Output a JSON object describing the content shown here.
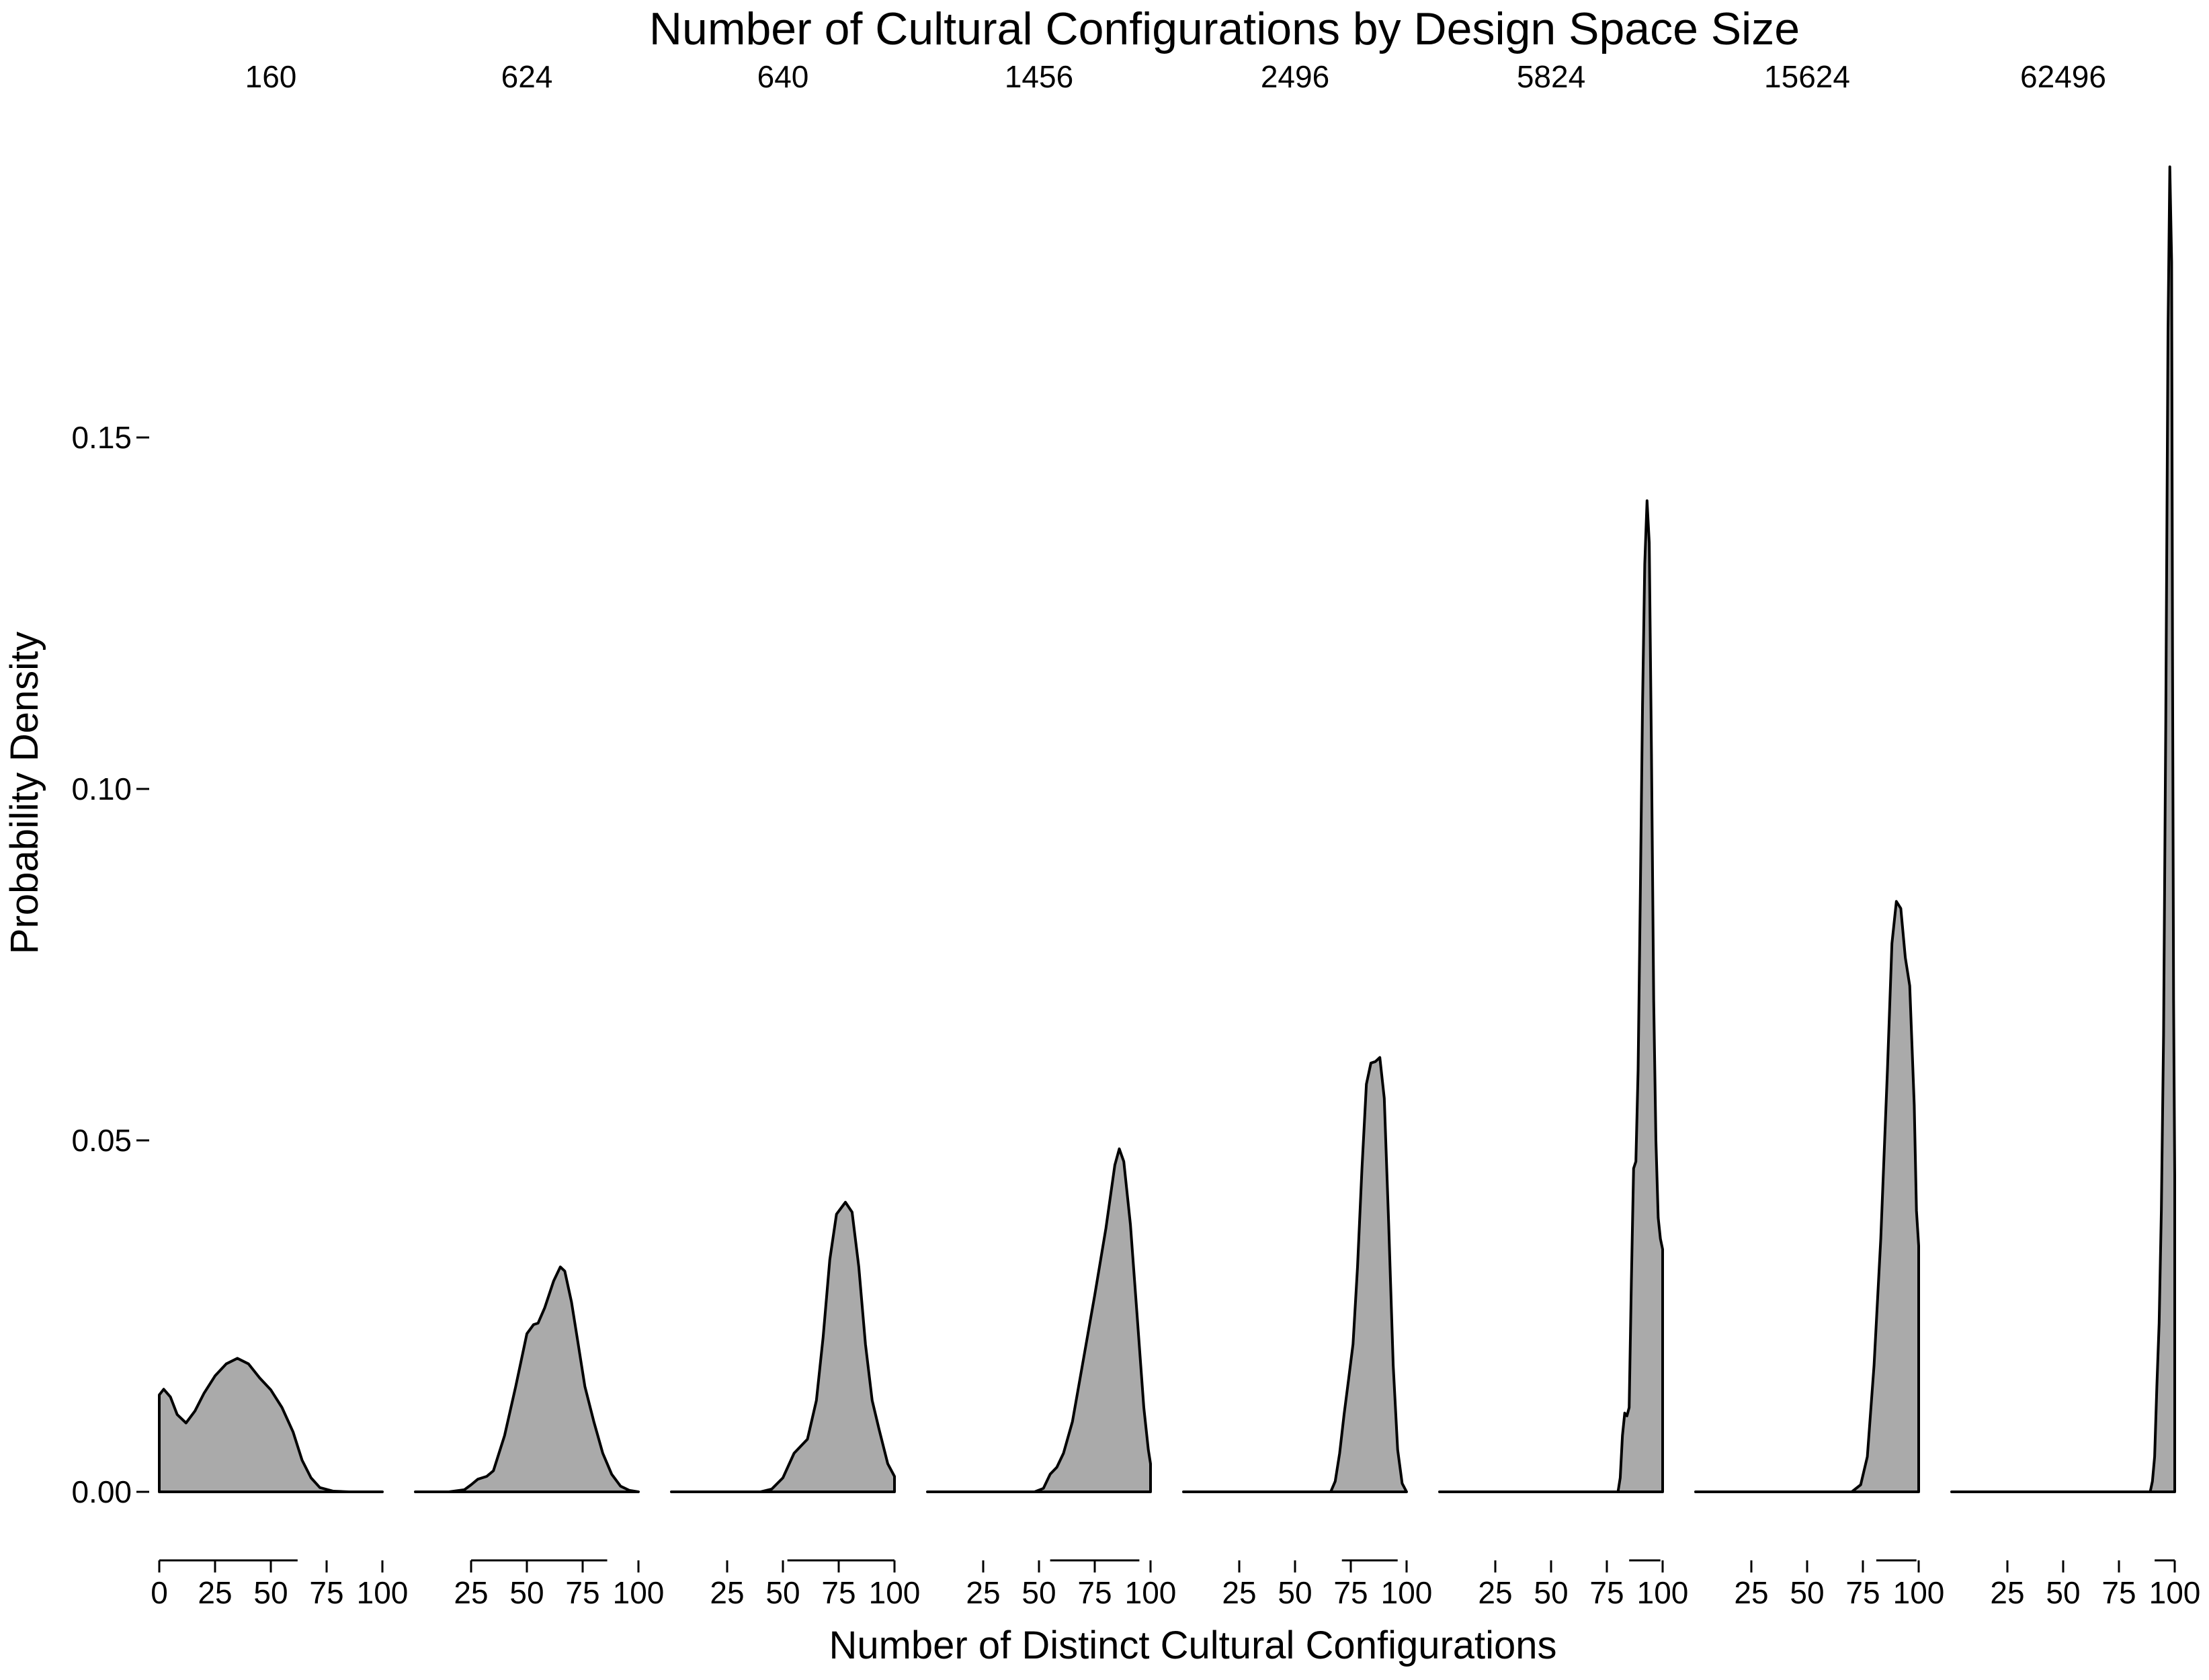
{
  "chart_data": {
    "type": "area",
    "title": "Number of Cultural Configurations by Design Space Size",
    "xlabel": "Number of Distinct Cultural Configurations",
    "ylabel": "Probability Density",
    "ylim": [
      0,
      0.19
    ],
    "y_ticks": [
      "0.00",
      "0.05",
      "0.10",
      "0.15"
    ],
    "x_ticks": [
      "25",
      "50",
      "75",
      "100"
    ],
    "x_tick_first_panel_extra": "0",
    "xlim": [
      0,
      100
    ],
    "grid": false,
    "fill_color": "#aaaaaa",
    "line_color": "#000000",
    "panels": [
      {
        "label": "160",
        "range": [
          0,
          62
        ],
        "points": [
          [
            0,
            0.0138
          ],
          [
            2,
            0.0146
          ],
          [
            5,
            0.0135
          ],
          [
            8,
            0.011
          ],
          [
            12,
            0.0098
          ],
          [
            16,
            0.0115
          ],
          [
            20,
            0.014
          ],
          [
            25,
            0.0165
          ],
          [
            30,
            0.0182
          ],
          [
            35,
            0.019
          ],
          [
            40,
            0.0182
          ],
          [
            45,
            0.0162
          ],
          [
            50,
            0.0145
          ],
          [
            55,
            0.012
          ],
          [
            60,
            0.0085
          ],
          [
            64,
            0.0045
          ],
          [
            68,
            0.002
          ],
          [
            72,
            0.0006
          ],
          [
            78,
            0.0001
          ],
          [
            85,
            0
          ],
          [
            100,
            0
          ]
        ]
      },
      {
        "label": "624",
        "range": [
          25,
          86
        ],
        "points": [
          [
            0,
            0
          ],
          [
            15,
            0
          ],
          [
            22,
            0.0003
          ],
          [
            25,
            0.001
          ],
          [
            28,
            0.0018
          ],
          [
            32,
            0.0022
          ],
          [
            35,
            0.003
          ],
          [
            40,
            0.008
          ],
          [
            45,
            0.015
          ],
          [
            50,
            0.0225
          ],
          [
            53,
            0.0238
          ],
          [
            55,
            0.024
          ],
          [
            58,
            0.0262
          ],
          [
            62,
            0.03
          ],
          [
            65,
            0.032
          ],
          [
            67,
            0.0314
          ],
          [
            70,
            0.027
          ],
          [
            73,
            0.021
          ],
          [
            76,
            0.015
          ],
          [
            80,
            0.01
          ],
          [
            84,
            0.0055
          ],
          [
            88,
            0.0025
          ],
          [
            92,
            0.0008
          ],
          [
            96,
            0.0002
          ],
          [
            100,
            0
          ]
        ]
      },
      {
        "label": "640",
        "range": [
          52,
          100
        ],
        "points": [
          [
            0,
            0
          ],
          [
            40,
            0
          ],
          [
            45,
            0.0004
          ],
          [
            50,
            0.002
          ],
          [
            55,
            0.0055
          ],
          [
            58,
            0.0065
          ],
          [
            61,
            0.0075
          ],
          [
            65,
            0.013
          ],
          [
            68,
            0.022
          ],
          [
            71,
            0.033
          ],
          [
            74,
            0.0395
          ],
          [
            78,
            0.0412
          ],
          [
            81,
            0.0398
          ],
          [
            84,
            0.032
          ],
          [
            87,
            0.021
          ],
          [
            90,
            0.013
          ],
          [
            93,
            0.009
          ],
          [
            97,
            0.004
          ],
          [
            100,
            0.0022
          ],
          [
            100,
            0
          ]
        ]
      },
      {
        "label": "1456",
        "range": [
          55,
          95
        ],
        "points": [
          [
            0,
            0
          ],
          [
            48,
            0
          ],
          [
            52,
            0.0005
          ],
          [
            55,
            0.0025
          ],
          [
            58,
            0.0035
          ],
          [
            61,
            0.0055
          ],
          [
            65,
            0.01
          ],
          [
            70,
            0.019
          ],
          [
            75,
            0.028
          ],
          [
            80,
            0.0375
          ],
          [
            84,
            0.0465
          ],
          [
            86,
            0.0488
          ],
          [
            88,
            0.047
          ],
          [
            91,
            0.038
          ],
          [
            94,
            0.025
          ],
          [
            97,
            0.012
          ],
          [
            99,
            0.006
          ],
          [
            100,
            0.004
          ],
          [
            100,
            0
          ]
        ]
      },
      {
        "label": "2496",
        "range": [
          71,
          96
        ],
        "points": [
          [
            0,
            0
          ],
          [
            66,
            0
          ],
          [
            68,
            0.0015
          ],
          [
            70,
            0.0055
          ],
          [
            72,
            0.011
          ],
          [
            74,
            0.016
          ],
          [
            76,
            0.021
          ],
          [
            78,
            0.032
          ],
          [
            80,
            0.046
          ],
          [
            82,
            0.058
          ],
          [
            84,
            0.061
          ],
          [
            86,
            0.0612
          ],
          [
            88,
            0.0618
          ],
          [
            90,
            0.056
          ],
          [
            92,
            0.038
          ],
          [
            94,
            0.018
          ],
          [
            96,
            0.006
          ],
          [
            98,
            0.0012
          ],
          [
            100,
            0
          ]
        ]
      },
      {
        "label": "5824",
        "range": [
          85,
          99
        ],
        "points": [
          [
            0,
            0
          ],
          [
            80,
            0
          ],
          [
            81,
            0.002
          ],
          [
            82,
            0.008
          ],
          [
            83,
            0.0112
          ],
          [
            84,
            0.0108
          ],
          [
            85,
            0.012
          ],
          [
            86,
            0.03
          ],
          [
            87,
            0.046
          ],
          [
            88,
            0.047
          ],
          [
            89,
            0.06
          ],
          [
            90,
            0.085
          ],
          [
            91,
            0.112
          ],
          [
            92,
            0.132
          ],
          [
            93,
            0.141
          ],
          [
            94,
            0.135
          ],
          [
            95,
            0.105
          ],
          [
            96,
            0.07
          ],
          [
            97,
            0.05
          ],
          [
            98,
            0.039
          ],
          [
            99,
            0.036
          ],
          [
            100,
            0.0345
          ],
          [
            100,
            0
          ]
        ]
      },
      {
        "label": "15624",
        "range": [
          81,
          99
        ],
        "points": [
          [
            0,
            0
          ],
          [
            70,
            0
          ],
          [
            74,
            0.001
          ],
          [
            77,
            0.005
          ],
          [
            80,
            0.018
          ],
          [
            83,
            0.036
          ],
          [
            86,
            0.06
          ],
          [
            88,
            0.078
          ],
          [
            90,
            0.084
          ],
          [
            92,
            0.083
          ],
          [
            94,
            0.076
          ],
          [
            96,
            0.072
          ],
          [
            98,
            0.055
          ],
          [
            99,
            0.04
          ],
          [
            100,
            0.035
          ],
          [
            100,
            0
          ]
        ]
      },
      {
        "label": "62496",
        "range": [
          91,
          100
        ],
        "points": [
          [
            0,
            0
          ],
          [
            89,
            0
          ],
          [
            90,
            0.0015
          ],
          [
            91,
            0.005
          ],
          [
            92,
            0.015
          ],
          [
            93,
            0.024
          ],
          [
            94,
            0.04
          ],
          [
            95,
            0.065
          ],
          [
            96,
            0.11
          ],
          [
            97,
            0.165
          ],
          [
            97.8,
            0.1885
          ],
          [
            98.6,
            0.175
          ],
          [
            99,
            0.12
          ],
          [
            99.5,
            0.07
          ],
          [
            100,
            0.045
          ],
          [
            100,
            0
          ]
        ]
      }
    ]
  }
}
